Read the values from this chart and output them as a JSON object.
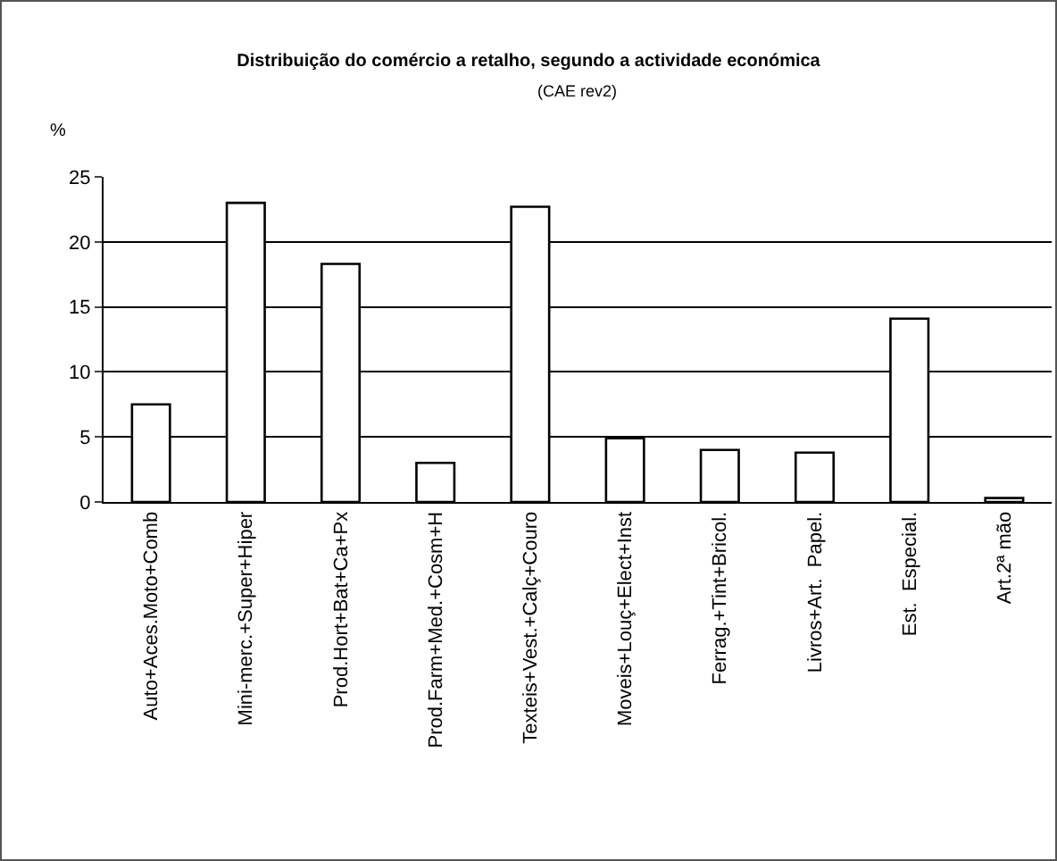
{
  "chart_data": {
    "type": "bar",
    "title": "Distribuição do comércio a retalho, segundo a actividade económica",
    "subtitle": "(CAE rev2)",
    "ylabel": "%",
    "categories": [
      "Auto+Aces.Moto+Comb",
      "Mini-merc.+Super+Hiper",
      "Prod.Hort+Bat+Ca+Px",
      "Prod.Farm+Med.+Cosm+H",
      "Texteis+Vest.+Calç+Couro",
      "Moveis+Louç+Elect+Inst",
      "Ferrag.+Tint+Bricol.",
      "Livros+Art.  Papel.",
      "Est.  Especial.",
      "Art.2ª mão"
    ],
    "values": [
      7.5,
      23,
      18.3,
      3,
      22.7,
      4.9,
      4,
      3.8,
      14.1,
      0.3
    ],
    "color": "#ffffff",
    "ylim": [
      0,
      25
    ],
    "yticks": [
      0,
      5,
      10,
      15,
      20,
      25
    ],
    "grid": "y"
  }
}
